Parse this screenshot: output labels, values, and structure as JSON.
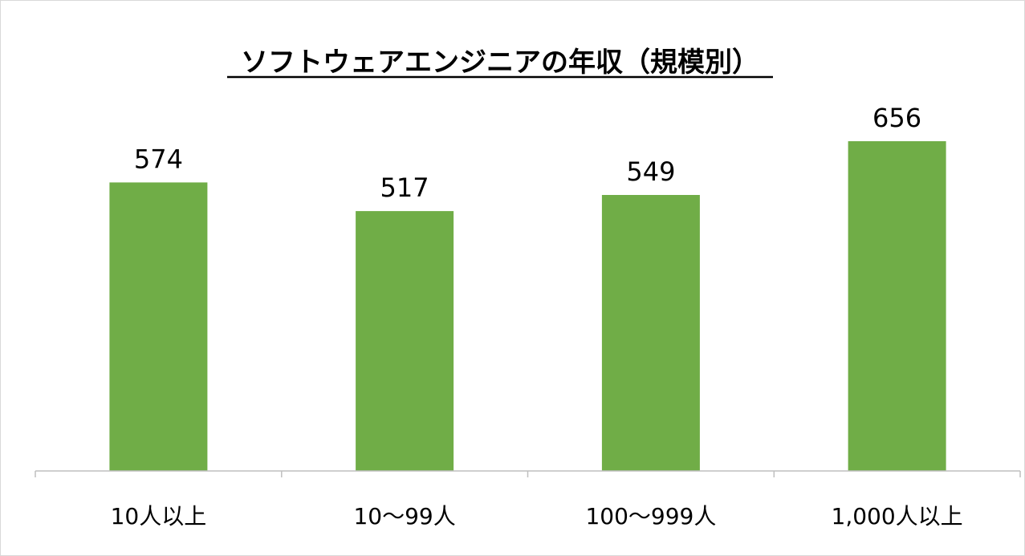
{
  "chart_data": {
    "type": "bar",
    "title": "ソフトウェアエンジニアの年収（規模別）",
    "categories": [
      "10人以上",
      "10～99人",
      "100～999人",
      "1,000人以上"
    ],
    "values": [
      574,
      517,
      549,
      656
    ],
    "xlabel": "",
    "ylabel": "",
    "ylim": [
      0,
      656
    ],
    "grid": false,
    "legend": "none",
    "data_labels": true,
    "bar_color": "#70ad47",
    "axis_color": "#bfbfbf"
  }
}
